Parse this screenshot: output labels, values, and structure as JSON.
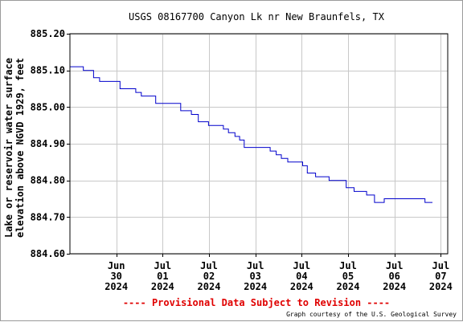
{
  "chart_data": {
    "type": "line",
    "title": "USGS 08167700 Canyon Lk nr New Braunfels, TX",
    "ylabel_lines": [
      "Lake or reservoir water surface",
      "elevation above NGVD 1929, feet"
    ],
    "ylim": [
      884.6,
      885.2
    ],
    "xlim": [
      0,
      8.15
    ],
    "grid": true,
    "y_ticks": [
      {
        "value": 884.6,
        "label": "884.60"
      },
      {
        "value": 884.7,
        "label": "884.70"
      },
      {
        "value": 884.8,
        "label": "884.80"
      },
      {
        "value": 884.9,
        "label": "884.90"
      },
      {
        "value": 885.0,
        "label": "885.00"
      },
      {
        "value": 885.1,
        "label": "885.10"
      },
      {
        "value": 885.2,
        "label": "885.20"
      }
    ],
    "x_ticks": [
      {
        "value": 1,
        "month": "Jun",
        "day": "30",
        "year": "2024"
      },
      {
        "value": 2,
        "month": "Jul",
        "day": "01",
        "year": "2024"
      },
      {
        "value": 3,
        "month": "Jul",
        "day": "02",
        "year": "2024"
      },
      {
        "value": 4,
        "month": "Jul",
        "day": "03",
        "year": "2024"
      },
      {
        "value": 5,
        "month": "Jul",
        "day": "04",
        "year": "2024"
      },
      {
        "value": 6,
        "month": "Jul",
        "day": "05",
        "year": "2024"
      },
      {
        "value": 7,
        "month": "Jul",
        "day": "06",
        "year": "2024"
      },
      {
        "value": 8,
        "month": "Jul",
        "day": "07",
        "year": "2024"
      }
    ],
    "series": [
      {
        "color": "#0000cc",
        "step": true,
        "points": [
          [
            0.0,
            885.11
          ],
          [
            0.29,
            885.1
          ],
          [
            0.51,
            885.08
          ],
          [
            0.64,
            885.07
          ],
          [
            1.08,
            885.05
          ],
          [
            1.42,
            885.04
          ],
          [
            1.54,
            885.03
          ],
          [
            1.85,
            885.01
          ],
          [
            2.39,
            884.99
          ],
          [
            2.62,
            884.98
          ],
          [
            2.77,
            884.96
          ],
          [
            2.99,
            884.95
          ],
          [
            3.31,
            884.94
          ],
          [
            3.42,
            884.93
          ],
          [
            3.56,
            884.92
          ],
          [
            3.66,
            884.91
          ],
          [
            3.76,
            884.89
          ],
          [
            4.32,
            884.88
          ],
          [
            4.45,
            884.87
          ],
          [
            4.56,
            884.86
          ],
          [
            4.7,
            884.85
          ],
          [
            5.02,
            884.84
          ],
          [
            5.12,
            884.82
          ],
          [
            5.3,
            884.81
          ],
          [
            5.59,
            884.8
          ],
          [
            5.96,
            884.78
          ],
          [
            6.13,
            884.77
          ],
          [
            6.4,
            884.76
          ],
          [
            6.57,
            884.74
          ],
          [
            6.78,
            884.75
          ],
          [
            7.66,
            884.74
          ],
          [
            7.82,
            884.74
          ]
        ]
      }
    ],
    "footer_notice": "---- Provisional Data Subject to Revision ----",
    "credit": "Graph courtesy of the U.S. Geological Survey"
  }
}
